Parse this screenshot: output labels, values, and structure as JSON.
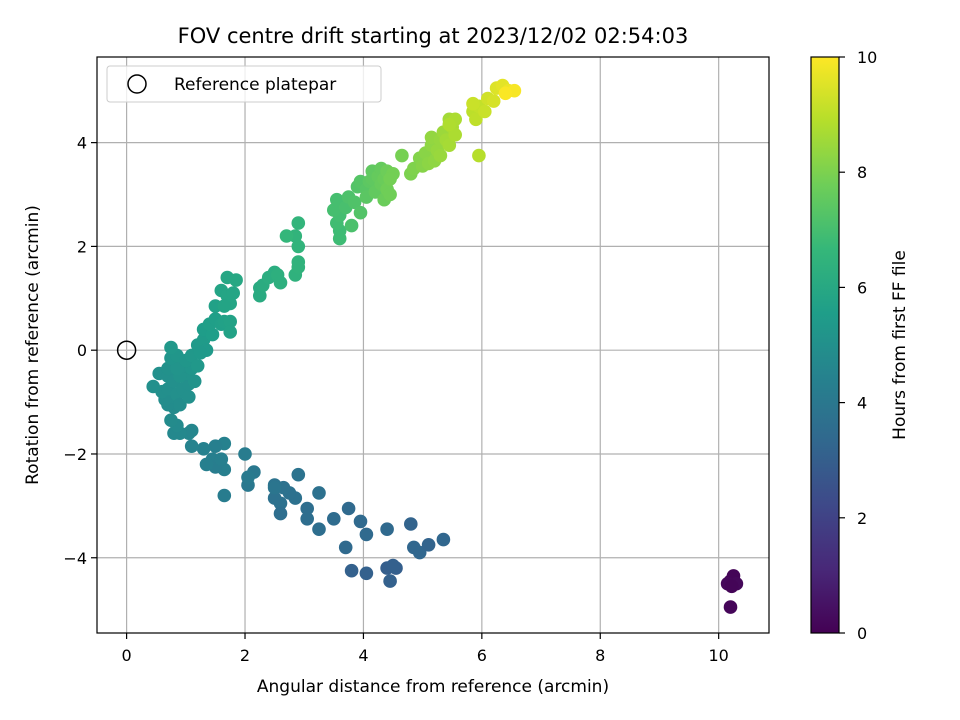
{
  "chart_data": {
    "type": "scatter",
    "title": "FOV centre drift starting at 2023/12/02 02:54:03",
    "xlabel": "Angular distance from reference (arcmin)",
    "ylabel": "Rotation from reference (arcmin)",
    "xlim": [
      -0.5,
      10.85
    ],
    "ylim": [
      -5.45,
      5.65
    ],
    "xticks": [
      0,
      2,
      4,
      6,
      8,
      10
    ],
    "yticks": [
      -4,
      -2,
      0,
      2,
      4
    ],
    "grid": true,
    "legend": {
      "placement": "top-left",
      "entries": [
        "Reference platepar"
      ]
    },
    "reference_point": {
      "label": "Reference platepar",
      "x": 0,
      "y": 0
    },
    "colorbar": {
      "label": "Hours from first FF file",
      "colormap": "viridis",
      "range": [
        0,
        10
      ],
      "ticks": [
        0,
        2,
        4,
        6,
        8,
        10
      ]
    },
    "colors": {
      "viridis": [
        "#440154",
        "#482878",
        "#3e4989",
        "#31688e",
        "#26828e",
        "#1f9e89",
        "#35b779",
        "#6ece58",
        "#b5de2b",
        "#fde725"
      ],
      "grid": "#b0b0b0",
      "axes": "#000000"
    },
    "series": [
      {
        "points": [
          [
            10.2,
            -4.45,
            0.1
          ],
          [
            10.25,
            -4.35,
            0.1
          ],
          [
            10.3,
            -4.5,
            0.2
          ],
          [
            10.15,
            -4.5,
            0.2
          ],
          [
            10.2,
            -4.95,
            0.15
          ],
          [
            10.22,
            -4.55,
            0.1
          ],
          [
            3.8,
            -4.25,
            3.1
          ],
          [
            4.05,
            -4.3,
            3.1
          ],
          [
            4.4,
            -4.2,
            3.0
          ],
          [
            4.45,
            -4.45,
            3.1
          ],
          [
            4.55,
            -4.2,
            3.0
          ],
          [
            4.5,
            -4.15,
            3.05
          ],
          [
            4.85,
            -3.8,
            3.3
          ],
          [
            4.95,
            -3.9,
            3.3
          ],
          [
            5.1,
            -3.75,
            3.2
          ],
          [
            5.35,
            -3.65,
            3.3
          ],
          [
            4.8,
            -3.35,
            3.2
          ],
          [
            4.4,
            -3.45,
            3.4
          ],
          [
            4.05,
            -3.55,
            3.4
          ],
          [
            3.95,
            -3.3,
            3.4
          ],
          [
            3.75,
            -3.05,
            3.4
          ],
          [
            3.5,
            -3.25,
            3.5
          ],
          [
            3.7,
            -3.8,
            3.4
          ],
          [
            3.25,
            -3.45,
            3.6
          ],
          [
            3.25,
            -2.75,
            3.7
          ],
          [
            3.05,
            -3.05,
            3.6
          ],
          [
            3.05,
            -3.25,
            3.6
          ],
          [
            2.9,
            -2.4,
            3.8
          ],
          [
            2.85,
            -2.85,
            3.7
          ],
          [
            2.75,
            -2.75,
            3.7
          ],
          [
            2.65,
            -2.65,
            3.75
          ],
          [
            2.6,
            -2.95,
            3.7
          ],
          [
            2.6,
            -3.15,
            3.6
          ],
          [
            2.5,
            -2.6,
            3.8
          ],
          [
            2.5,
            -2.85,
            3.7
          ],
          [
            2.5,
            -2.65,
            3.9
          ],
          [
            2.15,
            -2.35,
            4.0
          ],
          [
            2.05,
            -2.6,
            4.0
          ],
          [
            2.0,
            -2.0,
            4.2
          ],
          [
            2.05,
            -2.45,
            4.1
          ],
          [
            1.65,
            -2.3,
            4.3
          ],
          [
            1.65,
            -1.8,
            4.4
          ],
          [
            1.5,
            -1.85,
            4.3
          ],
          [
            1.45,
            -2.1,
            4.3
          ],
          [
            1.5,
            -2.25,
            4.25
          ],
          [
            1.35,
            -2.2,
            4.3
          ],
          [
            1.3,
            -1.9,
            4.4
          ],
          [
            1.1,
            -1.85,
            4.5
          ],
          [
            1.65,
            -2.8,
            4.2
          ],
          [
            1.6,
            -2.1,
            4.3
          ],
          [
            1.1,
            -1.55,
            4.6
          ],
          [
            1.05,
            -1.6,
            4.6
          ],
          [
            0.9,
            -1.6,
            4.7
          ],
          [
            0.8,
            -1.6,
            4.7
          ],
          [
            0.85,
            -1.45,
            4.75
          ],
          [
            0.75,
            -1.35,
            4.8
          ],
          [
            0.8,
            -1.1,
            4.8
          ],
          [
            0.7,
            -1.05,
            4.85
          ],
          [
            0.75,
            -0.9,
            4.9
          ],
          [
            0.65,
            -0.95,
            4.9
          ],
          [
            0.6,
            -0.8,
            4.95
          ],
          [
            0.7,
            -0.75,
            4.95
          ],
          [
            0.45,
            -0.7,
            5.0
          ],
          [
            0.55,
            -0.45,
            5.0
          ],
          [
            0.7,
            -0.5,
            5.0
          ],
          [
            0.7,
            -0.35,
            5.05
          ],
          [
            0.8,
            -0.6,
            5.0
          ],
          [
            0.85,
            -0.85,
            5.0
          ],
          [
            0.9,
            -1.05,
            4.9
          ],
          [
            0.95,
            -0.75,
            5.0
          ],
          [
            1.05,
            -0.9,
            5.0
          ],
          [
            1.05,
            -0.65,
            5.0
          ],
          [
            1.0,
            -0.45,
            5.1
          ],
          [
            0.9,
            -0.5,
            5.1
          ],
          [
            0.95,
            -0.3,
            5.1
          ],
          [
            0.85,
            -0.35,
            5.15
          ],
          [
            0.75,
            -0.15,
            5.2
          ],
          [
            1.15,
            -0.6,
            5.1
          ],
          [
            1.1,
            -0.35,
            5.2
          ],
          [
            0.85,
            -0.1,
            5.25
          ],
          [
            0.75,
            0.05,
            5.3
          ],
          [
            1.0,
            -0.2,
            5.25
          ],
          [
            1.1,
            -0.1,
            5.3
          ],
          [
            1.2,
            -0.3,
            5.3
          ],
          [
            1.2,
            0.1,
            5.4
          ],
          [
            1.3,
            0.2,
            5.45
          ],
          [
            1.35,
            0.0,
            5.4
          ],
          [
            1.25,
            -0.05,
            5.35
          ],
          [
            1.3,
            0.4,
            5.5
          ],
          [
            1.45,
            0.3,
            5.55
          ],
          [
            1.4,
            0.5,
            5.6
          ],
          [
            1.5,
            0.6,
            5.6
          ],
          [
            1.5,
            0.85,
            5.7
          ],
          [
            1.6,
            0.5,
            5.65
          ],
          [
            1.65,
            0.55,
            5.7
          ],
          [
            1.75,
            0.55,
            5.75
          ],
          [
            1.75,
            0.35,
            5.75
          ],
          [
            1.6,
            1.15,
            5.8
          ],
          [
            1.7,
            1.05,
            5.85
          ],
          [
            1.8,
            1.1,
            5.85
          ],
          [
            1.75,
            0.9,
            5.85
          ],
          [
            1.65,
            0.85,
            5.8
          ],
          [
            1.7,
            1.4,
            5.9
          ],
          [
            1.85,
            1.35,
            5.95
          ],
          [
            2.25,
            1.05,
            6.1
          ],
          [
            2.25,
            1.2,
            6.1
          ],
          [
            2.3,
            1.25,
            6.15
          ],
          [
            2.4,
            1.4,
            6.2
          ],
          [
            2.5,
            1.5,
            6.2
          ],
          [
            2.55,
            1.45,
            6.3
          ],
          [
            2.6,
            1.3,
            6.3
          ],
          [
            2.85,
            1.45,
            6.4
          ],
          [
            2.9,
            1.7,
            6.45
          ],
          [
            2.9,
            1.6,
            6.45
          ],
          [
            2.9,
            2.0,
            6.5
          ],
          [
            2.85,
            2.2,
            6.5
          ],
          [
            2.9,
            2.45,
            6.55
          ],
          [
            2.7,
            2.2,
            6.6
          ],
          [
            3.6,
            2.15,
            6.85
          ],
          [
            3.6,
            2.3,
            6.85
          ],
          [
            3.55,
            2.45,
            6.9
          ],
          [
            3.6,
            2.6,
            6.95
          ],
          [
            3.5,
            2.7,
            7.0
          ],
          [
            3.55,
            2.9,
            7.0
          ],
          [
            3.7,
            2.75,
            7.05
          ],
          [
            3.8,
            2.4,
            7.1
          ],
          [
            3.75,
            2.95,
            7.15
          ],
          [
            3.85,
            2.85,
            7.2
          ],
          [
            3.9,
            3.15,
            7.25
          ],
          [
            3.95,
            2.65,
            7.25
          ],
          [
            3.95,
            3.25,
            7.3
          ],
          [
            4.05,
            3.1,
            7.35
          ],
          [
            4.05,
            2.95,
            7.4
          ],
          [
            4.1,
            3.25,
            7.45
          ],
          [
            4.15,
            3.3,
            7.5
          ],
          [
            4.15,
            3.45,
            7.5
          ],
          [
            4.2,
            3.05,
            7.55
          ],
          [
            4.25,
            3.35,
            7.6
          ],
          [
            4.3,
            3.5,
            7.6
          ],
          [
            4.3,
            3.2,
            7.65
          ],
          [
            4.35,
            2.9,
            7.7
          ],
          [
            4.35,
            3.3,
            7.7
          ],
          [
            4.4,
            3.45,
            7.75
          ],
          [
            4.4,
            3.1,
            7.8
          ],
          [
            4.45,
            3.0,
            7.8
          ],
          [
            4.5,
            3.4,
            7.85
          ],
          [
            4.45,
            3.3,
            7.85
          ],
          [
            4.65,
            3.75,
            7.9
          ],
          [
            4.8,
            3.4,
            8.0
          ],
          [
            4.85,
            3.5,
            8.05
          ],
          [
            4.95,
            3.7,
            8.1
          ],
          [
            5.0,
            3.55,
            8.15
          ],
          [
            5.05,
            3.8,
            8.2
          ],
          [
            5.1,
            3.6,
            8.25
          ],
          [
            5.15,
            3.95,
            8.3
          ],
          [
            5.2,
            3.65,
            8.3
          ],
          [
            5.15,
            4.1,
            8.35
          ],
          [
            5.25,
            3.85,
            8.4
          ],
          [
            5.3,
            4.05,
            8.4
          ],
          [
            5.3,
            3.75,
            8.45
          ],
          [
            5.35,
            4.2,
            8.5
          ],
          [
            5.45,
            4.45,
            8.6
          ],
          [
            5.4,
            4.05,
            8.6
          ],
          [
            5.45,
            3.95,
            8.65
          ],
          [
            5.5,
            4.3,
            8.7
          ],
          [
            5.55,
            4.45,
            8.75
          ],
          [
            5.55,
            4.15,
            8.75
          ],
          [
            5.45,
            4.35,
            8.8
          ],
          [
            5.95,
            3.75,
            8.9
          ],
          [
            5.85,
            4.6,
            9.0
          ],
          [
            5.9,
            4.45,
            9.05
          ],
          [
            5.95,
            4.7,
            9.1
          ],
          [
            6.05,
            4.6,
            9.2
          ],
          [
            5.85,
            4.75,
            9.2
          ],
          [
            6.1,
            4.85,
            9.3
          ],
          [
            6.2,
            4.8,
            9.4
          ],
          [
            6.25,
            5.05,
            9.5
          ],
          [
            6.35,
            5.1,
            9.6
          ],
          [
            6.45,
            5.0,
            9.75
          ],
          [
            6.55,
            5.0,
            9.9
          ],
          [
            6.4,
            4.95,
            9.95
          ]
        ]
      }
    ]
  }
}
